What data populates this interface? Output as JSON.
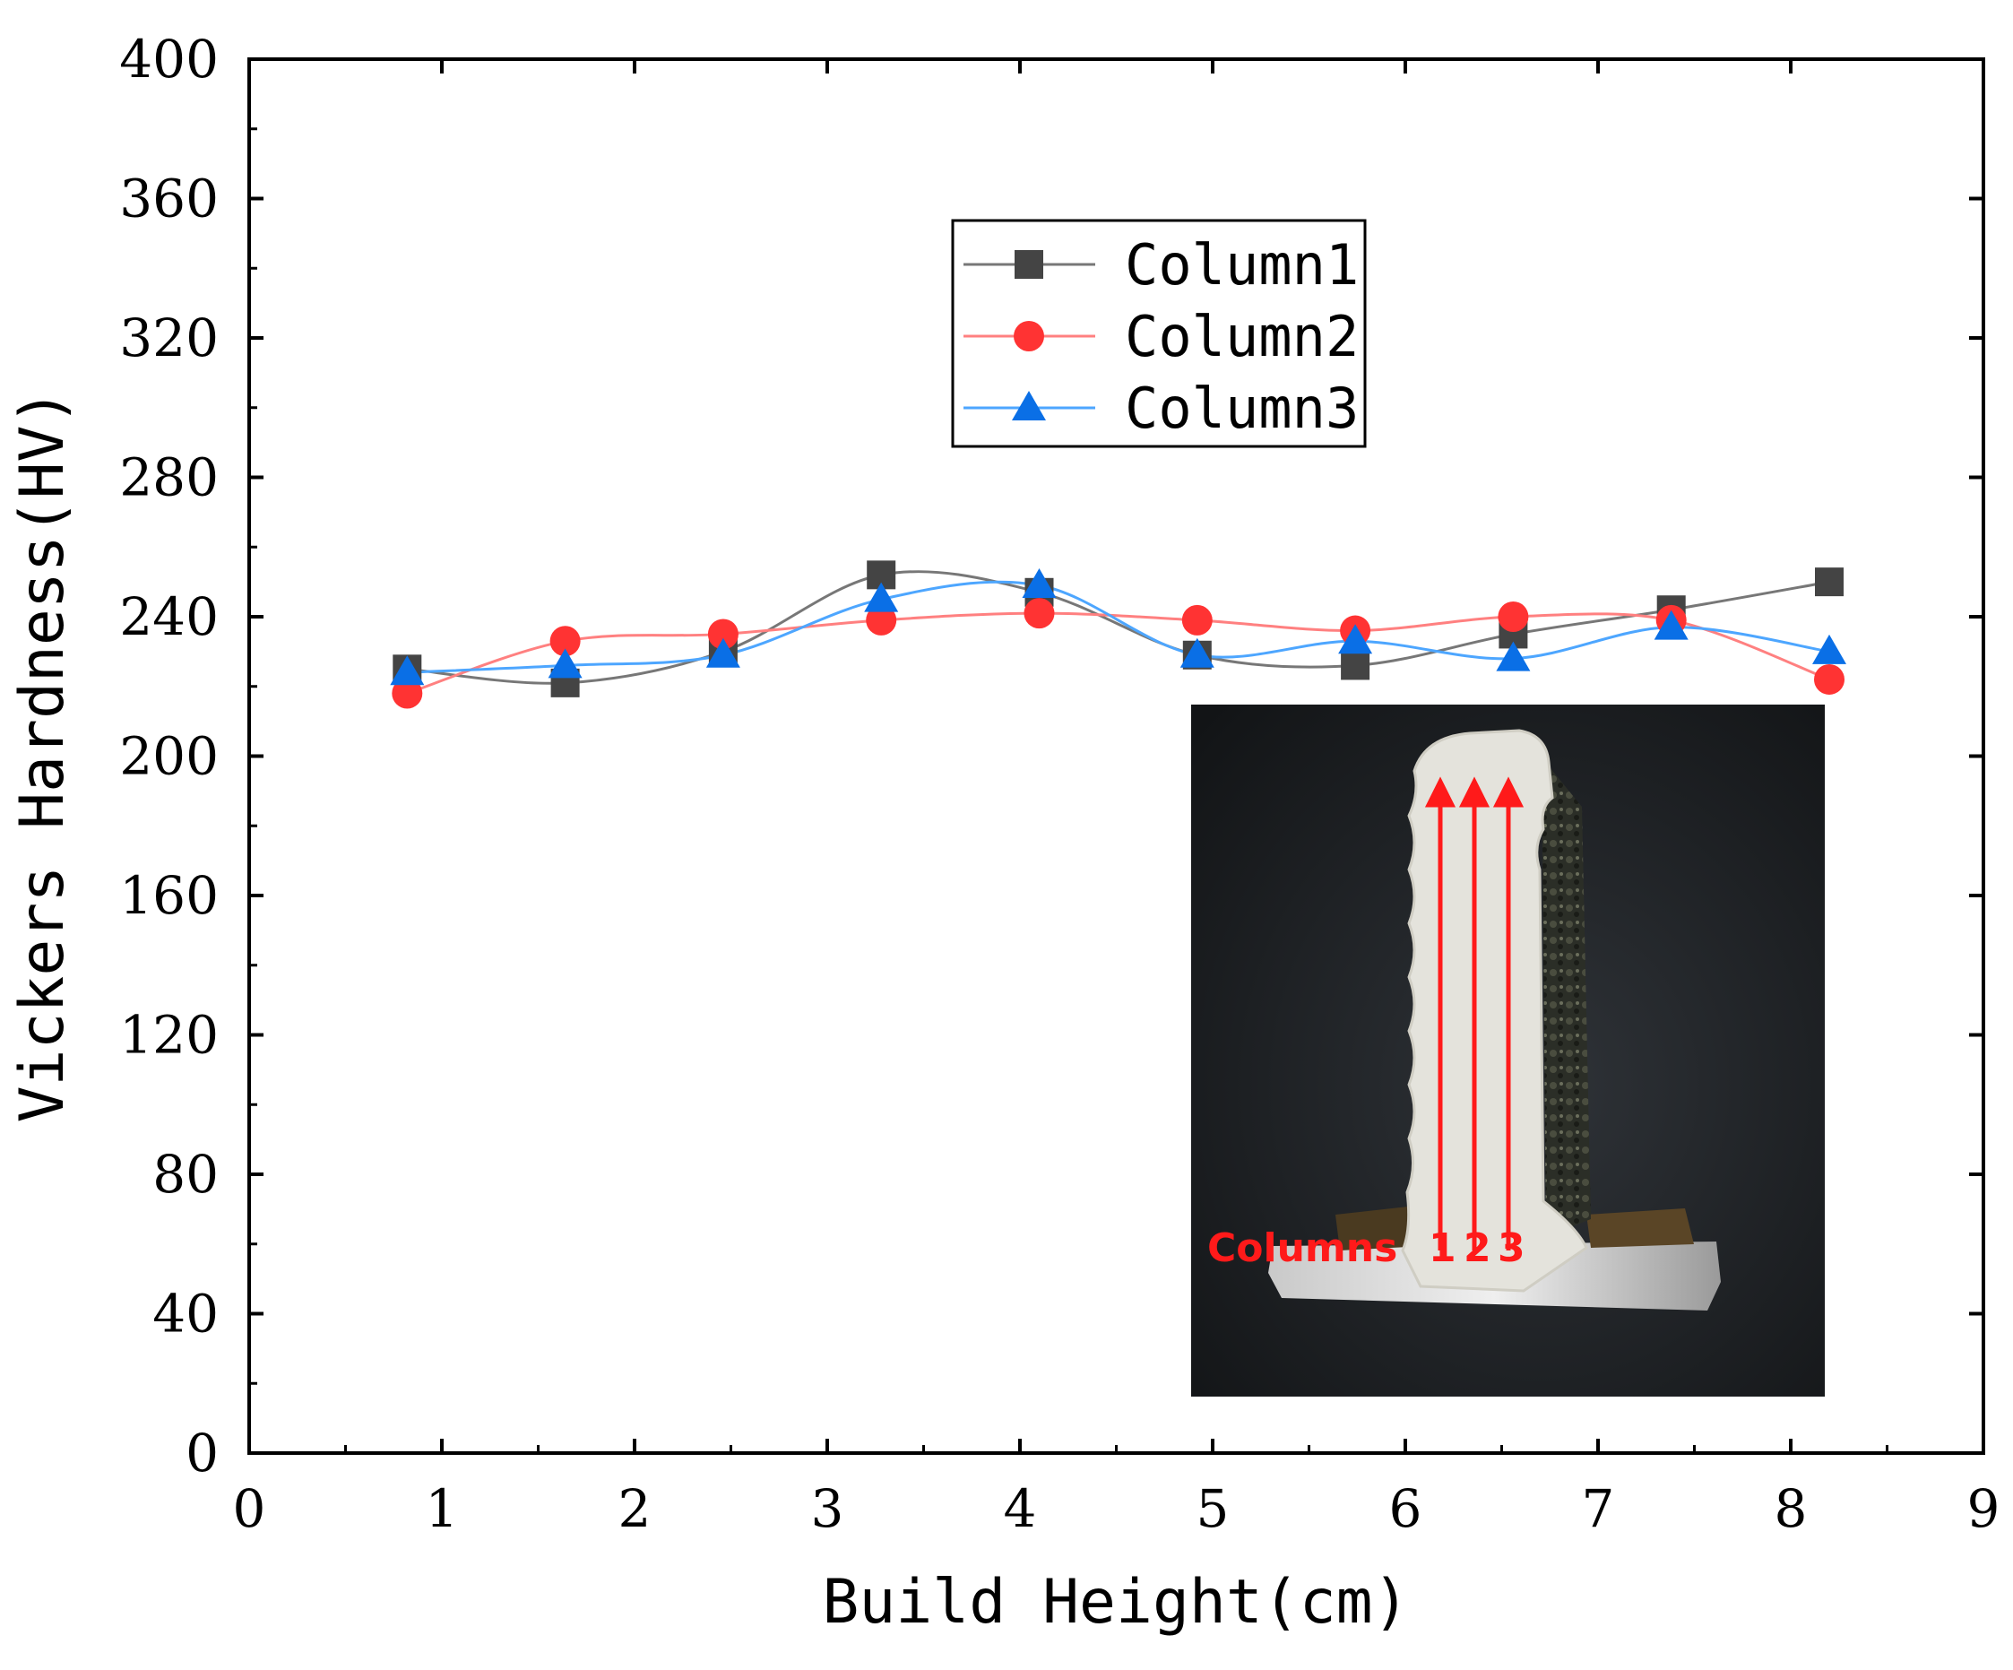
{
  "chart_data": {
    "type": "line",
    "title": "",
    "xlabel": "Build Height(cm)",
    "ylabel": "Vickers Hardness(HV)",
    "xlim": [
      0,
      9
    ],
    "ylim": [
      0,
      400
    ],
    "xticks": [
      0,
      1,
      2,
      3,
      4,
      5,
      6,
      7,
      8,
      9
    ],
    "yticks": [
      0,
      40,
      80,
      120,
      160,
      200,
      240,
      280,
      320,
      360,
      400
    ],
    "legend_position": "upper-center",
    "x": [
      0.82,
      1.64,
      2.46,
      3.28,
      4.1,
      4.92,
      5.74,
      6.56,
      7.38,
      8.2
    ],
    "series": [
      {
        "name": "Column1",
        "marker": "square",
        "color": "#444444",
        "line_color": "#777777",
        "values": [
          225,
          221,
          230,
          252,
          247,
          229,
          226,
          235,
          242,
          250
        ]
      },
      {
        "name": "Column2",
        "marker": "circle",
        "color": "#ff3333",
        "line_color": "#ff8080",
        "values": [
          218,
          233,
          235,
          239,
          241,
          239,
          236,
          240,
          239,
          222
        ]
      },
      {
        "name": "Column3",
        "marker": "triangle",
        "color": "#0a6fe6",
        "line_color": "#4da6ff",
        "values": [
          224,
          226,
          229,
          245,
          249,
          229,
          233,
          228,
          237,
          230
        ]
      }
    ],
    "inset": {
      "description_label": "Columns",
      "column_numbers": [
        "1",
        "2",
        "3"
      ]
    }
  }
}
